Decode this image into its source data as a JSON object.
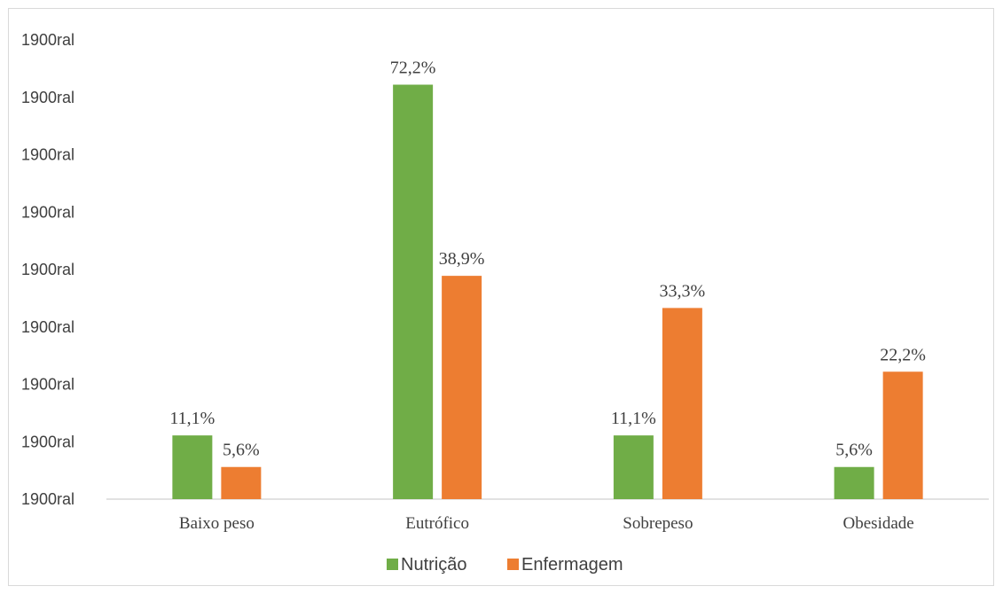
{
  "chart_data": {
    "type": "bar",
    "categories": [
      "Baixo peso",
      "Eutrófico",
      "Sobrepeso",
      "Obesidade"
    ],
    "series": [
      {
        "name": "Nutrição",
        "color": "#70ad47",
        "values": [
          11.1,
          72.2,
          11.1,
          5.6
        ],
        "labels": [
          "11,1%",
          "72,2%",
          "11,1%",
          "5,6%"
        ]
      },
      {
        "name": "Enfermagem",
        "color": "#ed7d31",
        "values": [
          5.6,
          38.9,
          33.3,
          22.2
        ],
        "labels": [
          "5,6%",
          "38,9%",
          "33,3%",
          "22,2%"
        ]
      }
    ],
    "y_tick_labels": [
      "1900ral",
      "1900ral",
      "1900ral",
      "1900ral",
      "1900ral",
      "1900ral",
      "1900ral",
      "1900ral",
      "1900ral"
    ],
    "ylim": [
      0,
      80
    ],
    "grid": false,
    "legend_position": "bottom"
  }
}
